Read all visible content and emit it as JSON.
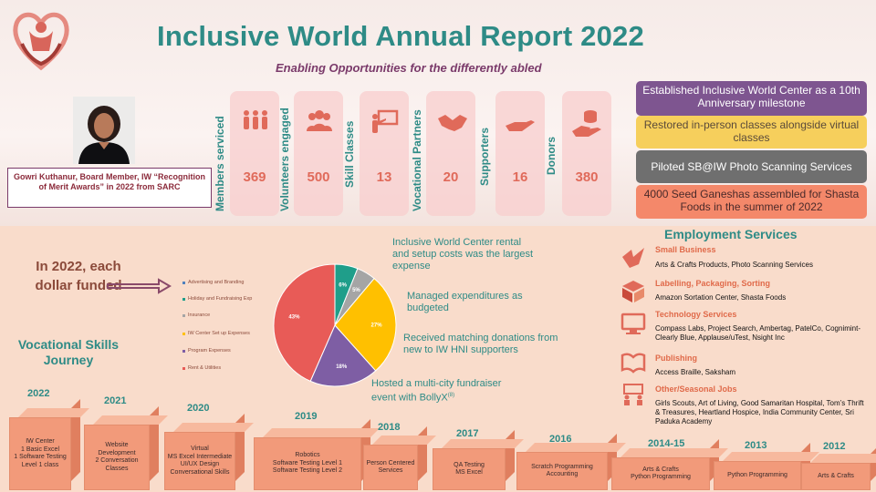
{
  "header": {
    "title": "Inclusive World Annual Report 2022",
    "subtitle": "Enabling Opportunities for the differently abled",
    "logo_icon": "heart-hands-logo-icon"
  },
  "profile": {
    "caption": "Gowri Kuthanur, Board Member, IW “Recognition of Merit Awards” in 2022 from SARC"
  },
  "stats": [
    {
      "label": "Members serviced",
      "value": "369",
      "icon": "people-icon"
    },
    {
      "label": "Volunteers engaged",
      "value": "500",
      "icon": "group-icon"
    },
    {
      "label": "Skill Classes",
      "value": "13",
      "icon": "teacher-board-icon"
    },
    {
      "label": "Vocational Partners",
      "value": "20",
      "icon": "handshake-icon"
    },
    {
      "label": "Supporters",
      "value": "16",
      "icon": "giving-hand-icon"
    },
    {
      "label": "Donors",
      "value": "380",
      "icon": "donation-coins-icon"
    }
  ],
  "highlights": [
    {
      "text": "Established Inclusive World Center as a 10th Anniversary milestone",
      "bg": "#7e5590",
      "color": "#ffffff"
    },
    {
      "text": "Restored in-person classes alongside virtual classes",
      "bg": "#f6cf5c",
      "color": "#5a4a3a"
    },
    {
      "text": "Piloted SB@IW Photo Scanning Services",
      "bg": "#6f6f6f",
      "color": "#ffffff"
    },
    {
      "text": "4000 Seed Ganeshas assembled for Shasta Foods in the summer of 2022",
      "bg": "#f4886a",
      "color": "#4a2a2a"
    }
  ],
  "funding": {
    "heading": "In 2022, each dollar funded"
  },
  "chart_data": {
    "type": "pie",
    "categories": [
      "Advertising and Branding",
      "Holiday and Fundraising Exp",
      "Insurance",
      "IW Center Set up Expenses",
      "Program Expenses",
      "Rent & Utilities"
    ],
    "values": [
      0,
      6,
      5,
      27,
      18,
      43
    ],
    "labels": [
      "0%",
      "6%",
      "5%",
      "27%",
      "18%",
      "43%"
    ],
    "colors": [
      "#4f81bd",
      "#1f9e8a",
      "#a5a5a5",
      "#ffc000",
      "#7e5ea4",
      "#e85b57"
    ],
    "legend_position": "left"
  },
  "notes": [
    "Inclusive World Center rental and setup costs was the largest expense",
    "Managed expenditures as budgeted",
    "Received matching donations from new to IW HNI supporters",
    "Hosted a multi-city fundraiser event with BollyX"
  ],
  "note_superscript": "(8)",
  "vocational": {
    "title": "Vocational Skills Journey",
    "steps": [
      {
        "year": "2022",
        "text": "IW Center\n1 Basic Excel\n1 Software Testing Level 1 class"
      },
      {
        "year": "2021",
        "text": "Website Development\n2 Conversation Classes"
      },
      {
        "year": "2020",
        "text": "Virtual\nMS Excel Intermediate\nUI/UX Design\nConversational Skills"
      },
      {
        "year": "2019",
        "text": "Robotics\nSoftware Testing Level 1\nSoftware Testing Level 2"
      },
      {
        "year": "2018",
        "text": "Person Centered Services"
      },
      {
        "year": "2017",
        "text": "QA Testing\nMS Excel"
      },
      {
        "year": "2016",
        "text": "Scratch Programming\nAccounting"
      },
      {
        "year": "2014-15",
        "text": "Arts & Crafts\nPython Programming"
      },
      {
        "year": "2013",
        "text": "Python Programming"
      },
      {
        "year": "2012",
        "text": "Arts & Crafts"
      }
    ]
  },
  "employment": {
    "title": "Employment Services",
    "sections": [
      {
        "heading": "Small Business",
        "body": "Arts & Crafts Products, Photo Scanning Services",
        "icon": "origami-bird-icon"
      },
      {
        "heading": "Labelling, Packaging, Sorting",
        "body": "Amazon Sortation Center, Shasta Foods",
        "icon": "package-box-icon"
      },
      {
        "heading": "Technology Services",
        "body": "Compass Labs, Project Search,  Ambertag, PatelCo, Cognimint-Clearly Blue, Applause/uTest, Nsight Inc",
        "icon": "computer-monitor-icon"
      },
      {
        "heading": "Publishing",
        "body": "Access Braille,  Saksham",
        "icon": "open-book-icon"
      },
      {
        "heading": "Other/Seasonal Jobs",
        "body": "Girls Scouts, Art of Living, Good Samaritan Hospital, Tom’s Thrift & Treasures, Heartland Hospice, India Community Center, Sri Paduka Academy",
        "icon": "classroom-icon"
      }
    ]
  }
}
